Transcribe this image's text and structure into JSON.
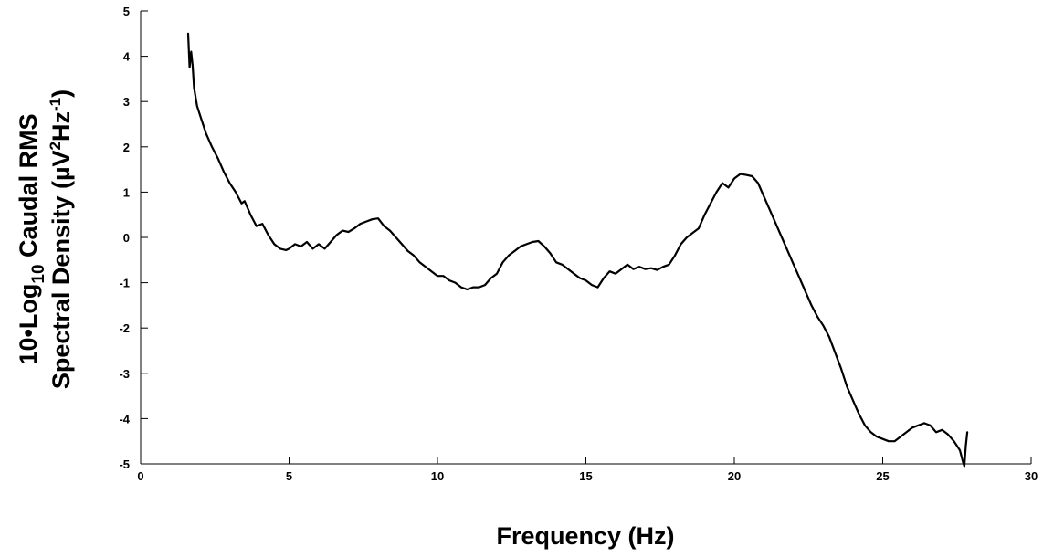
{
  "chart_data": {
    "type": "line",
    "xlabel": "Frequency (Hz)",
    "ylabel_line1": {
      "a": "10•Log",
      "sub": "10",
      "b": " Caudal RMS"
    },
    "ylabel_line2": {
      "a": "Spectral Density (µV",
      "sup1": "2",
      "b": "Hz",
      "sup2": "-1",
      "c": ")"
    },
    "xlim": [
      0,
      30
    ],
    "ylim": [
      -5,
      5
    ],
    "xticks": [
      0,
      5,
      10,
      15,
      20,
      25,
      30
    ],
    "yticks": [
      -5,
      -4,
      -3,
      -2,
      -1,
      0,
      1,
      2,
      3,
      4,
      5
    ],
    "grid": false,
    "line_color": "#000000",
    "series": [
      {
        "x": [
          1.6,
          1.65,
          1.7,
          1.75,
          1.8,
          1.9,
          2.0,
          2.2,
          2.4,
          2.6,
          2.8,
          3.0,
          3.2,
          3.4,
          3.5,
          3.7,
          3.9,
          4.1,
          4.3,
          4.5,
          4.7,
          4.9,
          5.0,
          5.2,
          5.4,
          5.6,
          5.8,
          6.0,
          6.2,
          6.4,
          6.6,
          6.8,
          7.0,
          7.2,
          7.4,
          7.6,
          7.8,
          8.0,
          8.2,
          8.4,
          8.6,
          8.8,
          9.0,
          9.2,
          9.4,
          9.6,
          9.8,
          10.0,
          10.2,
          10.4,
          10.6,
          10.8,
          11.0,
          11.2,
          11.4,
          11.6,
          11.8,
          12.0,
          12.2,
          12.4,
          12.6,
          12.8,
          13.0,
          13.2,
          13.4,
          13.6,
          13.8,
          14.0,
          14.2,
          14.4,
          14.6,
          14.8,
          15.0,
          15.2,
          15.4,
          15.6,
          15.8,
          16.0,
          16.2,
          16.4,
          16.6,
          16.8,
          17.0,
          17.2,
          17.4,
          17.6,
          17.8,
          18.0,
          18.2,
          18.4,
          18.6,
          18.8,
          19.0,
          19.2,
          19.4,
          19.6,
          19.8,
          20.0,
          20.2,
          20.4,
          20.6,
          20.8,
          21.0,
          21.2,
          21.4,
          21.6,
          21.8,
          22.0,
          22.2,
          22.4,
          22.6,
          22.8,
          23.0,
          23.2,
          23.4,
          23.6,
          23.8,
          24.0,
          24.2,
          24.4,
          24.6,
          24.8,
          25.0,
          25.2,
          25.4,
          25.6,
          25.8,
          26.0,
          26.2,
          26.4,
          26.6,
          26.8,
          27.0,
          27.2,
          27.4,
          27.5,
          27.6,
          27.7,
          27.75,
          27.8,
          27.85
        ],
        "y": [
          4.5,
          3.75,
          4.1,
          3.8,
          3.3,
          2.9,
          2.7,
          2.3,
          2.0,
          1.75,
          1.45,
          1.2,
          1.0,
          0.75,
          0.8,
          0.5,
          0.25,
          0.3,
          0.05,
          -0.15,
          -0.25,
          -0.28,
          -0.25,
          -0.15,
          -0.2,
          -0.1,
          -0.25,
          -0.15,
          -0.25,
          -0.1,
          0.05,
          0.15,
          0.12,
          0.2,
          0.3,
          0.35,
          0.4,
          0.42,
          0.25,
          0.15,
          0.0,
          -0.15,
          -0.3,
          -0.4,
          -0.55,
          -0.65,
          -0.75,
          -0.85,
          -0.85,
          -0.95,
          -1.0,
          -1.1,
          -1.15,
          -1.1,
          -1.1,
          -1.05,
          -0.9,
          -0.8,
          -0.55,
          -0.4,
          -0.3,
          -0.2,
          -0.15,
          -0.1,
          -0.08,
          -0.2,
          -0.35,
          -0.55,
          -0.6,
          -0.7,
          -0.8,
          -0.9,
          -0.95,
          -1.05,
          -1.1,
          -0.9,
          -0.75,
          -0.8,
          -0.7,
          -0.6,
          -0.7,
          -0.65,
          -0.7,
          -0.68,
          -0.72,
          -0.65,
          -0.6,
          -0.4,
          -0.15,
          0.0,
          0.1,
          0.2,
          0.5,
          0.75,
          1.0,
          1.2,
          1.1,
          1.3,
          1.4,
          1.38,
          1.35,
          1.2,
          0.9,
          0.6,
          0.3,
          0.0,
          -0.3,
          -0.6,
          -0.9,
          -1.2,
          -1.5,
          -1.75,
          -1.95,
          -2.2,
          -2.55,
          -2.9,
          -3.3,
          -3.6,
          -3.9,
          -4.15,
          -4.3,
          -4.4,
          -4.45,
          -4.5,
          -4.5,
          -4.4,
          -4.3,
          -4.2,
          -4.15,
          -4.1,
          -4.15,
          -4.3,
          -4.25,
          -4.35,
          -4.5,
          -4.6,
          -4.7,
          -4.95,
          -5.05,
          -4.6,
          -4.3
        ]
      }
    ]
  }
}
